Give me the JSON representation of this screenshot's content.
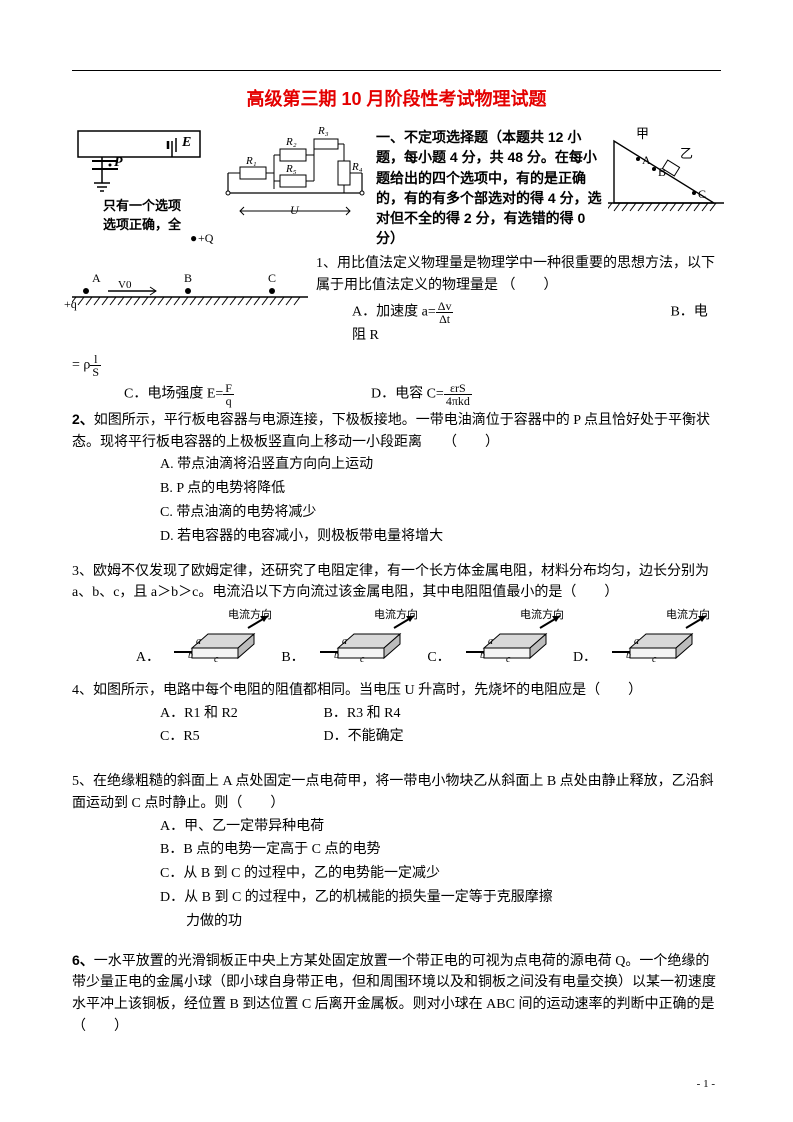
{
  "title": "高级第三期 10 月阶段性考试物理试题",
  "section1": {
    "heading": "一、不定项选择题（本题共 12 小题，每小题 4 分，共 48 分。在每小题给出的四个选项中，有的是正确的，有的有多个部选对的得 4 分，选对但不全的得 2 分，有选错的得 0 分）",
    "only_one_line1": "只有一个选项",
    "only_one_line2": "选项正确，全"
  },
  "fig_circuit1": {
    "P": "P",
    "E": "E"
  },
  "fig_circuit2": {
    "R1": "R₁",
    "R2": "R₂",
    "R3": "R₃",
    "R4": "R₄",
    "R5": "R₅",
    "U": "U"
  },
  "fig_incline": {
    "jia": "甲",
    "yi": "乙",
    "A": "A",
    "B": "B",
    "C": "C"
  },
  "fig_rail": {
    "q": "+q",
    "A": "A",
    "B": "B",
    "C": "C",
    "Q": "+Q",
    "V0": "V0"
  },
  "q1": {
    "text": "1、用比值法定义物理量是物理学中一种很重要的思想方法，以下属于用比值法定义的物理量是 （　　）",
    "optA_prefix": "A．加速度 a=",
    "optA_num": "Δv",
    "optA_den": "Δt",
    "optB": "B．电阻 R",
    "eq_num": "l",
    "eq_den": "S",
    "eq_pre": "= ρ",
    "optC_prefix": "C．电场强度 E=",
    "optC_num": "F",
    "optC_den": "q",
    "optD_prefix": "D．电容 C=",
    "optD_num": "εrS",
    "optD_den": "4πkd"
  },
  "q2": {
    "lead": "2、",
    "text": "如图所示，平行板电容器与电源连接，下极板接地。一带电油滴位于容器中的 P 点且恰好处于平衡状态。现将平行板电容器的上极板竖直向上移动一小段距离　　（　　）",
    "A": "A. 带点油滴将沿竖直方向向上运动",
    "B": "B. P 点的电势将降低",
    "C": "C. 带点油滴的电势将减少",
    "D": "D. 若电容器的电容减小，则极板带电量将增大"
  },
  "q3": {
    "text": "3、欧姆不仅发现了欧姆定律，还研究了电阻定律，有一个长方体金属电阻，材料分布均匀，边长分别为 a、b、c，且 a＞b＞c。电流沿以下方向流过该金属电阻，其中电阻阻值最小的是（　　）",
    "arrow": "电流方向",
    "A": "A．",
    "B": "B．",
    "C": "C．",
    "D": "D．",
    "a": "a",
    "b": "b",
    "c": "c"
  },
  "q4": {
    "text": "4、如图所示，电路中每个电阻的阻值都相同。当电压 U 升高时，先烧坏的电阻应是（　　）",
    "A": "A．R1 和 R2",
    "B": "B．R3 和 R4",
    "C": "C．R5",
    "D": "D．不能确定"
  },
  "q5": {
    "text": "5、在绝缘粗糙的斜面上 A 点处固定一点电荷甲，将一带电小物块乙从斜面上 B 点处由静止释放，乙沿斜面运动到 C 点时静止。则（　　）",
    "A": "A．甲、乙一定带异种电荷",
    "B": "B．B 点的电势一定高于 C 点的电势",
    "C": "C．从 B 到 C 的过程中，乙的电势能一定减少",
    "D": "D．从 B 到 C 的过程中，乙的机械能的损失量一定等于克服摩擦",
    "D2": "力做的功"
  },
  "q6": {
    "lead": "6、",
    "text": "一水平放置的光滑铜板正中央上方某处固定放置一个带正电的可视为点电荷的源电荷 Q。一个绝缘的带少量正电的金属小球（即小球自身带正电，但和周围环境以及和铜板之间没有电量交换）以某一初速度水平冲上该铜板，经位置 B 到达位置 C 后离开金属板。则对小球在 ABC 间的运动速率的判断中正确的是　　　　　　　　　　　（　　）"
  },
  "pageNum": "- 1 -"
}
